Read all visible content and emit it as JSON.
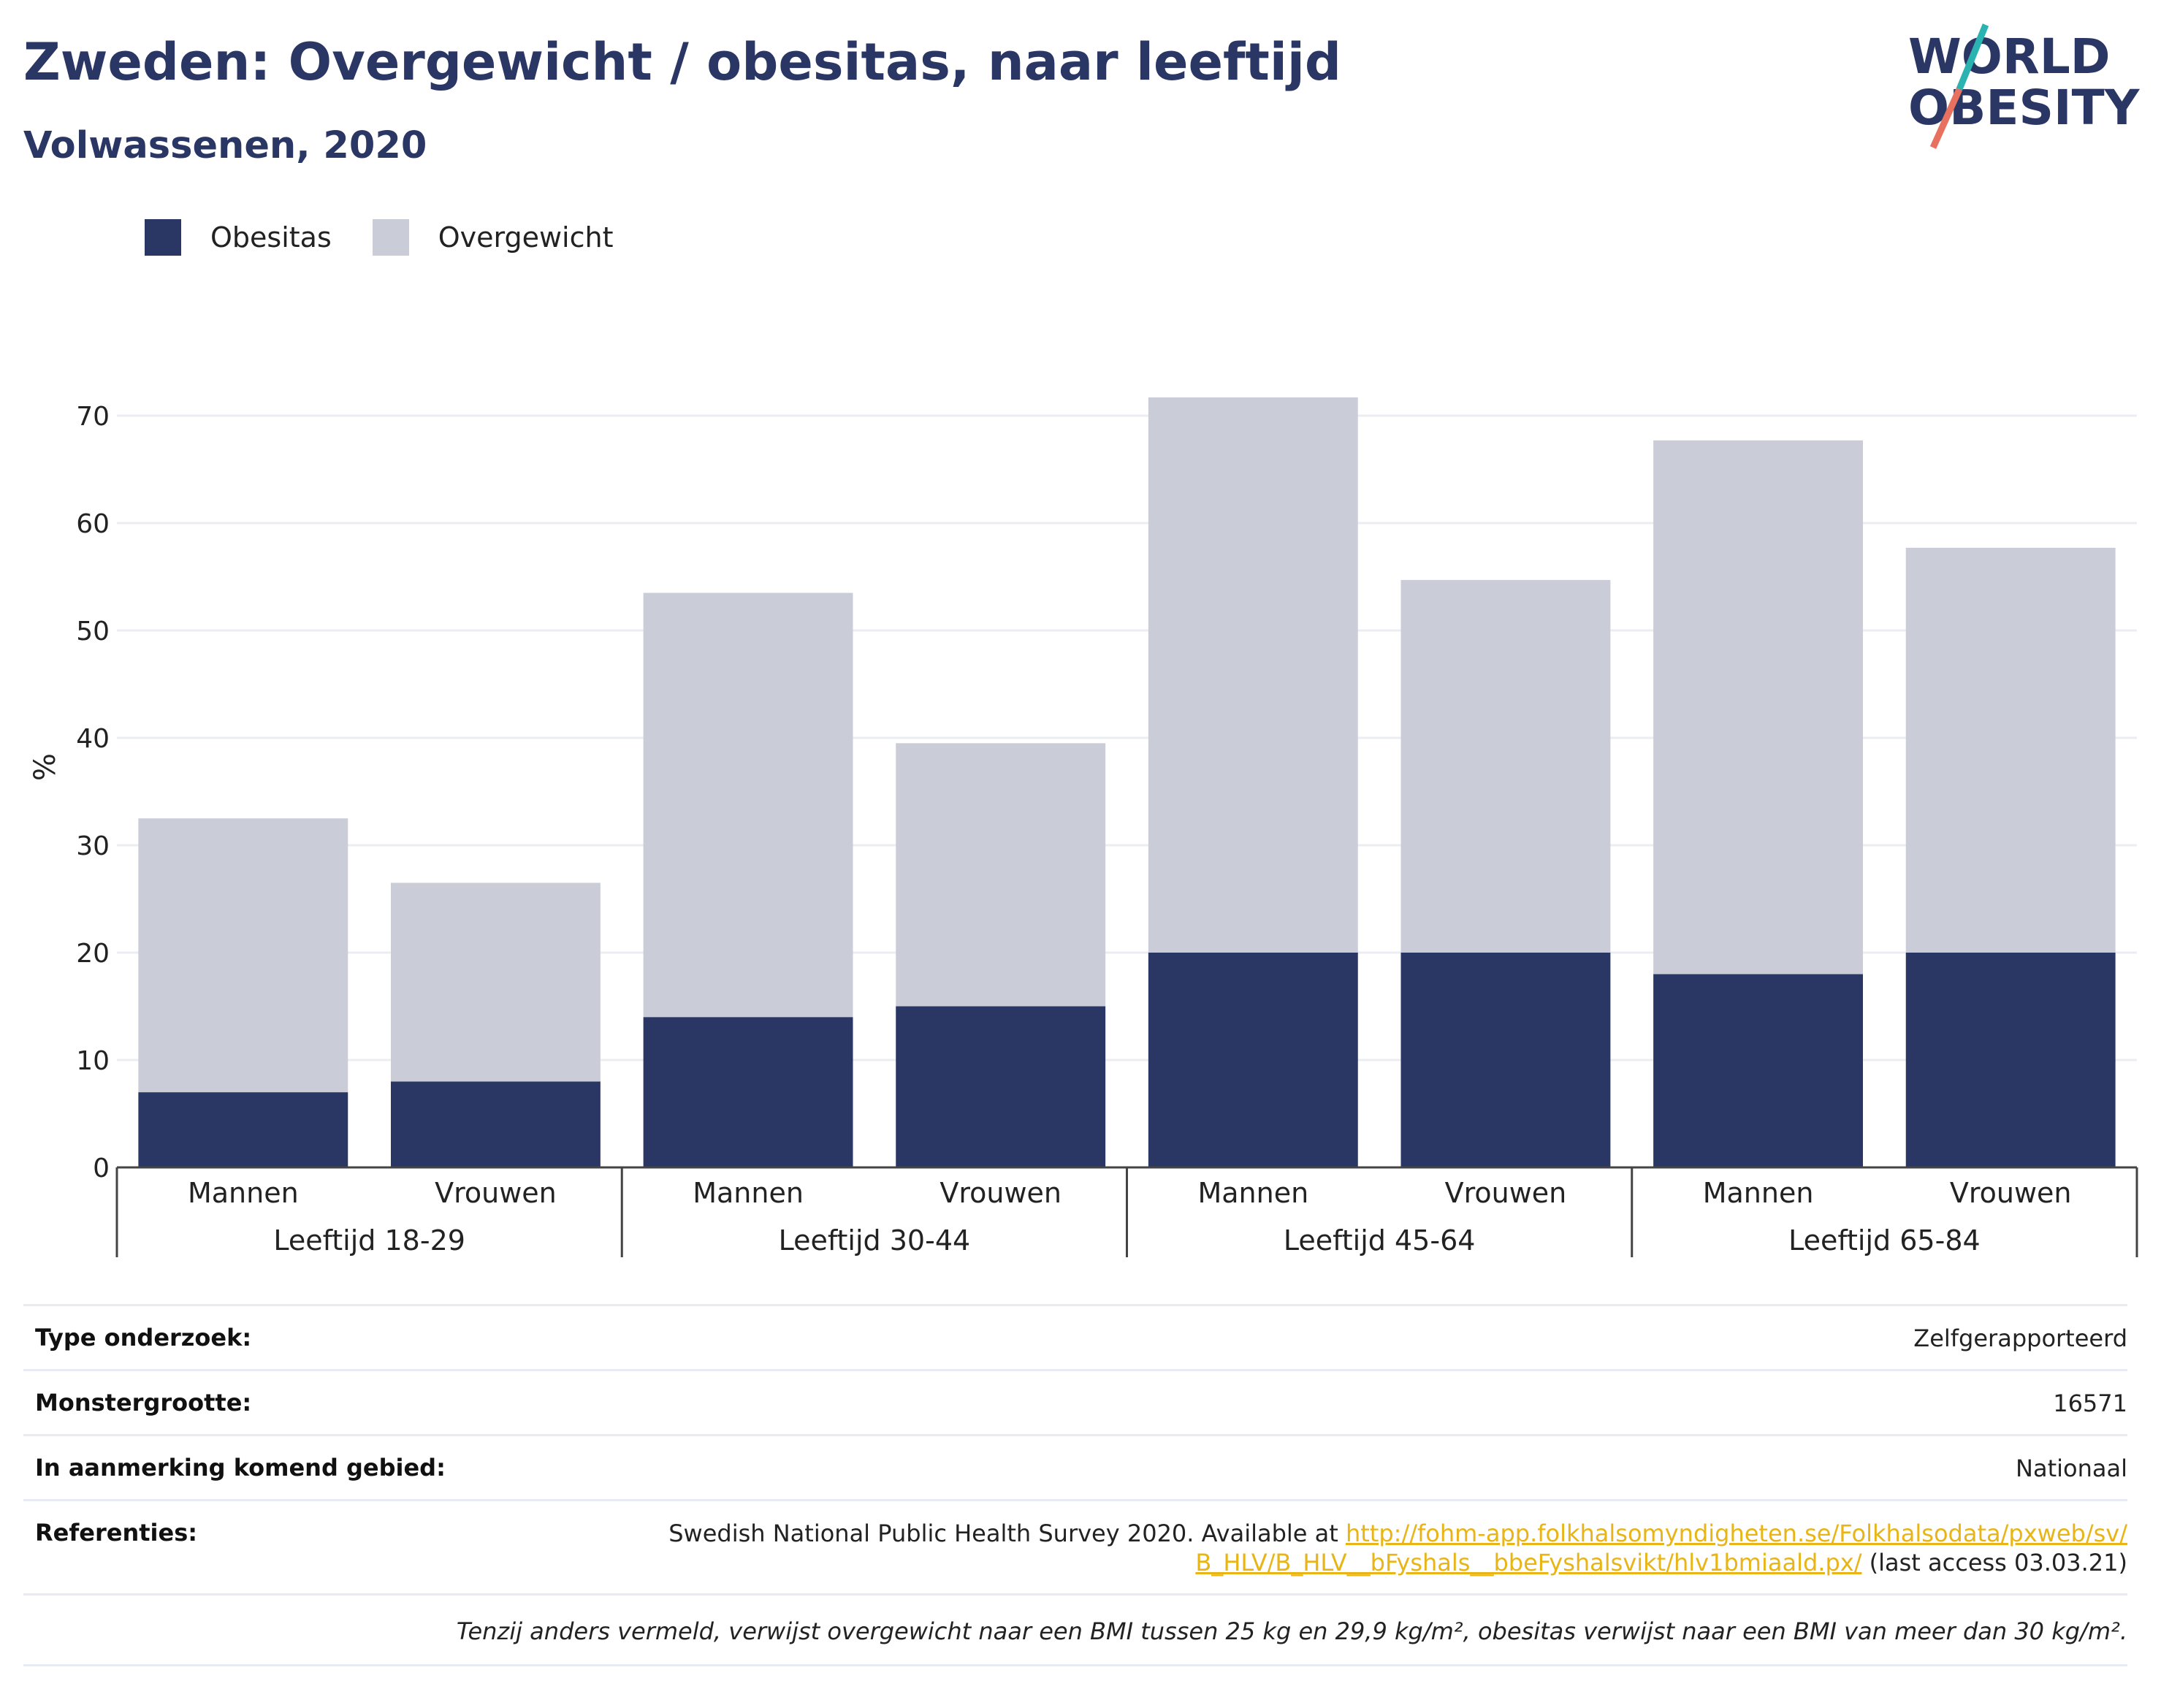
{
  "header": {
    "title": "Zweden: Overgewicht / obesitas, naar leeftijd",
    "subtitle": "Volwassenen, 2020"
  },
  "logo": {
    "line1": "WORLD",
    "line2": "OBESITY"
  },
  "legend": {
    "obesity_label": "Obesitas",
    "overweight_label": "Overgewicht"
  },
  "colors": {
    "obesity": "#2a3664",
    "overweight": "#caccd8",
    "accent_teal": "#2bb3b1",
    "accent_coral": "#e8705f",
    "link": "#e8b416"
  },
  "chart_data": {
    "type": "bar",
    "stacked": true,
    "title": "Zweden: Overgewicht / obesitas, naar leeftijd",
    "subtitle": "Volwassenen, 2020",
    "ylabel": "%",
    "ylim": [
      0,
      70
    ],
    "yticks": [
      0,
      10,
      20,
      30,
      40,
      50,
      60,
      70
    ],
    "grid": true,
    "legend_position": "top-left",
    "groups": [
      {
        "label": "Leeftijd 18-29",
        "categories": [
          "Mannen",
          "Vrouwen"
        ]
      },
      {
        "label": "Leeftijd 30-44",
        "categories": [
          "Mannen",
          "Vrouwen"
        ]
      },
      {
        "label": "Leeftijd 45-64",
        "categories": [
          "Mannen",
          "Vrouwen"
        ]
      },
      {
        "label": "Leeftijd 65-84",
        "categories": [
          "Mannen",
          "Vrouwen"
        ]
      }
    ],
    "categories": [
      "Mannen",
      "Vrouwen",
      "Mannen",
      "Vrouwen",
      "Mannen",
      "Vrouwen",
      "Mannen",
      "Vrouwen"
    ],
    "series": [
      {
        "name": "Obesitas",
        "values": [
          7,
          8,
          14,
          15,
          20,
          20,
          18,
          20
        ]
      },
      {
        "name": "Overgewicht",
        "values": [
          25.5,
          18.5,
          39.5,
          24.5,
          51.7,
          34.7,
          49.7,
          37.7
        ]
      }
    ],
    "totals": [
      32.5,
      26.5,
      53.5,
      39.5,
      71.7,
      54.7,
      67.7,
      57.7
    ]
  },
  "meta": {
    "survey_type_label": "Type onderzoek:",
    "survey_type_value": "Zelfgerapporteerd",
    "sample_size_label": "Monstergrootte:",
    "sample_size_value": "16571",
    "area_label": "In aanmerking komend gebied:",
    "area_value": "Nationaal",
    "references_label": "Referenties:",
    "references_text": "Swedish National Public Health Survey 2020. Available at ",
    "references_link": "http://fohm-app.folkhalsomyndigheten.se/Folkhalsodata/pxweb/sv/B_HLV/B_HLV__bFyshals__bbeFyshalsvikt/hlv1bmiaald.px/",
    "references_suffix": " (last access 03.03.21)",
    "note": "Tenzij anders vermeld, verwijst overgewicht naar een BMI tussen 25 kg en 29,9 kg/m², obesitas verwijst naar een BMI van meer dan 30 kg/m²."
  }
}
